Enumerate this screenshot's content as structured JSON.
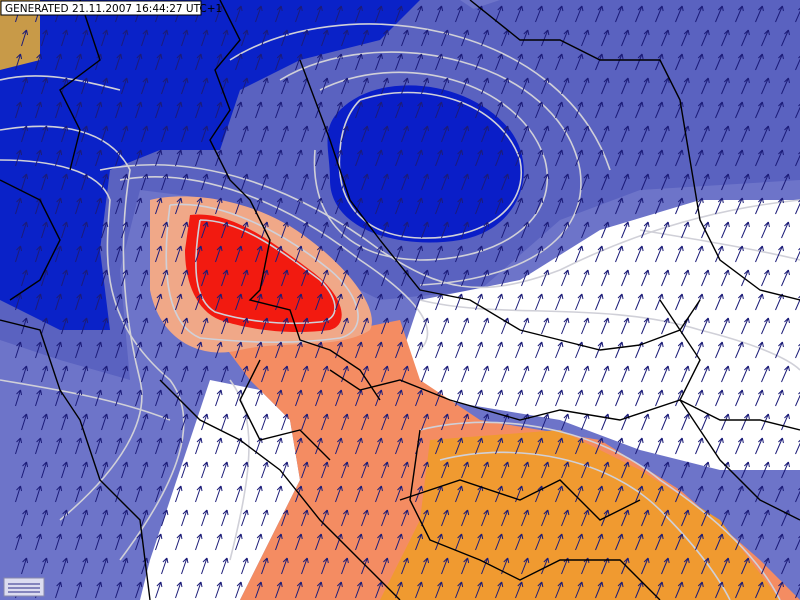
{
  "header": {
    "timestamp": "GENERATED 21.11.2007 16:44:27 UTC+1"
  }
}
